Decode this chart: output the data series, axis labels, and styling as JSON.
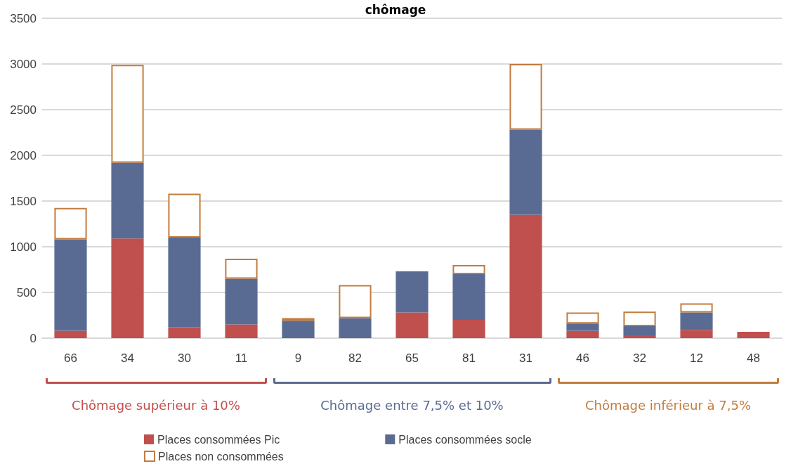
{
  "chart_data": {
    "type": "bar",
    "title": "chômage",
    "stacked": true,
    "categories": [
      "66",
      "34",
      "30",
      "11",
      "9",
      "82",
      "65",
      "81",
      "31",
      "46",
      "32",
      "12",
      "48"
    ],
    "series": [
      {
        "name": "Places consommées Pic",
        "color": "#c0504d",
        "values": [
          80,
          1090,
          120,
          150,
          null,
          null,
          280,
          200,
          1350,
          80,
          30,
          90,
          70
        ]
      },
      {
        "name": "Places consommées socle",
        "color": "#5a6b93",
        "values": [
          1000,
          830,
          980,
          500,
          190,
          220,
          450,
          500,
          930,
          80,
          100,
          190,
          null
        ]
      },
      {
        "name": "Places non consommées",
        "color": "#c27c3e",
        "values": [
          345,
          1070,
          480,
          220,
          30,
          360,
          null,
          100,
          720,
          120,
          160,
          100,
          null
        ]
      }
    ],
    "ylim": [
      0,
      3500
    ],
    "yticks": [
      0,
      500,
      1000,
      1500,
      2000,
      2500,
      3000,
      3500
    ],
    "grid": "y",
    "legend": "bottom",
    "annotations": [
      "Chômage supérieur à 10%",
      "Chômage entre 7,5% et 10%",
      "Chômage inférieur à 7,5%"
    ]
  }
}
